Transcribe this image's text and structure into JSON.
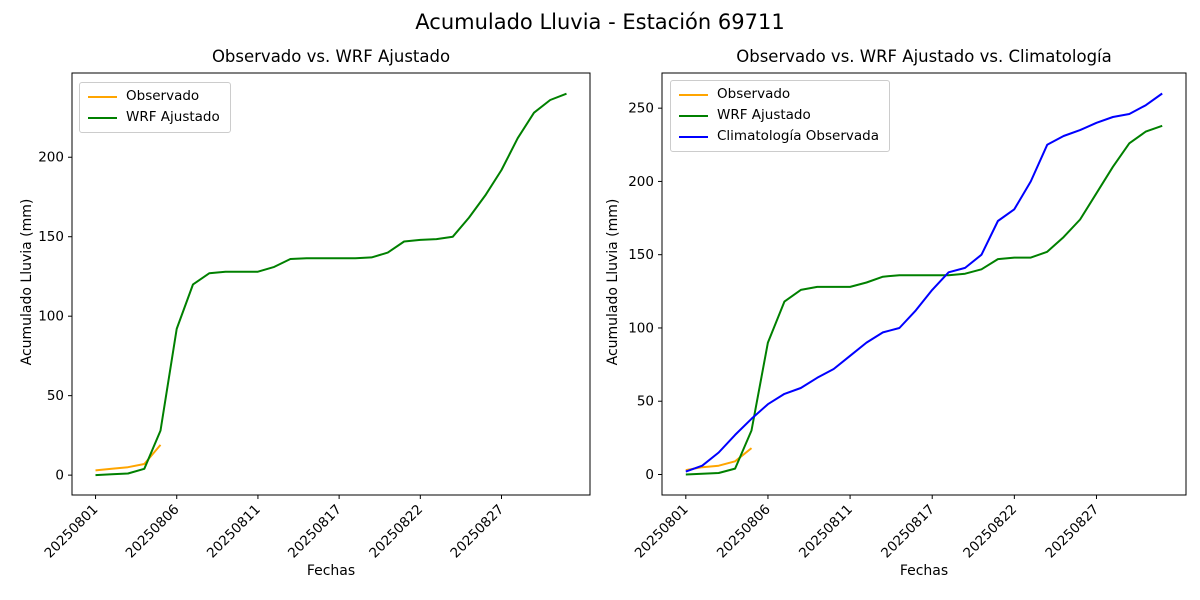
{
  "figure": {
    "suptitle": "Acumulado Lluvia - Estación 69711"
  },
  "chart_data": [
    {
      "type": "line",
      "title": "Observado vs. WRF Ajustado",
      "xlabel": "Fechas",
      "ylabel": "Acumulado Lluvia (mm)",
      "grid": false,
      "legend_position": "upper left",
      "xlim": [
        -1.45,
        30.45
      ],
      "ylim": [
        -12.5,
        253
      ],
      "x_ticks": {
        "positions": [
          0,
          5,
          10,
          15,
          20,
          25
        ],
        "labels": [
          "20250801",
          "20250806",
          "20250811",
          "20250817",
          "20250822",
          "20250827"
        ]
      },
      "y_ticks": [
        0,
        50,
        100,
        150,
        200
      ],
      "series": [
        {
          "name": "Observado",
          "color": "#FFA500",
          "x": [
            0,
            1,
            2,
            3,
            4
          ],
          "values": [
            3,
            4,
            5,
            7,
            19
          ]
        },
        {
          "name": "WRF Ajustado",
          "color": "#008000",
          "x": [
            0,
            1,
            2,
            3,
            4,
            5,
            6,
            7,
            8,
            9,
            10,
            11,
            12,
            13,
            14,
            15,
            16,
            17,
            18,
            19,
            20,
            21,
            22,
            23,
            24,
            25,
            26,
            27,
            28,
            29
          ],
          "values": [
            0,
            0.5,
            1,
            4,
            28,
            92,
            120,
            127,
            128,
            128,
            128,
            131,
            136,
            136.5,
            136.5,
            136.5,
            136.5,
            137,
            140,
            147,
            148,
            148.5,
            150,
            162,
            176,
            192,
            212,
            228,
            236,
            240
          ]
        }
      ]
    },
    {
      "type": "line",
      "title": "Observado vs. WRF Ajustado vs. Climatología",
      "xlabel": "Fechas",
      "ylabel": "Acumulado Lluvia (mm)",
      "grid": false,
      "legend_position": "upper left",
      "xlim": [
        -1.45,
        30.45
      ],
      "ylim": [
        -14,
        274
      ],
      "x_ticks": {
        "positions": [
          0,
          5,
          10,
          15,
          20,
          25
        ],
        "labels": [
          "20250801",
          "20250806",
          "20250811",
          "20250817",
          "20250822",
          "20250827"
        ]
      },
      "y_ticks": [
        0,
        50,
        100,
        150,
        200,
        250
      ],
      "series": [
        {
          "name": "Observado",
          "color": "#FFA500",
          "x": [
            0,
            1,
            2,
            3,
            4
          ],
          "values": [
            3,
            5,
            6,
            9,
            18
          ]
        },
        {
          "name": "WRF Ajustado",
          "color": "#008000",
          "x": [
            0,
            1,
            2,
            3,
            4,
            5,
            6,
            7,
            8,
            9,
            10,
            11,
            12,
            13,
            14,
            15,
            16,
            17,
            18,
            19,
            20,
            21,
            22,
            23,
            24,
            25,
            26,
            27,
            28,
            29
          ],
          "values": [
            0,
            0.5,
            1,
            4,
            30,
            90,
            118,
            126,
            128,
            128,
            128,
            131,
            135,
            136,
            136,
            136,
            136,
            137,
            140,
            147,
            148,
            148,
            152,
            162,
            174,
            192,
            210,
            226,
            234,
            238
          ]
        },
        {
          "name": "Climatología Observada",
          "color": "#0000FF",
          "x": [
            0,
            1,
            2,
            3,
            4,
            5,
            6,
            7,
            8,
            9,
            10,
            11,
            12,
            13,
            14,
            15,
            16,
            17,
            18,
            19,
            20,
            21,
            22,
            23,
            24,
            25,
            26,
            27,
            28,
            29
          ],
          "values": [
            2,
            6,
            15,
            27,
            38,
            48,
            55,
            59,
            66,
            72,
            81,
            90,
            97,
            100,
            112,
            126,
            138,
            141,
            150,
            173,
            181,
            200,
            225,
            231,
            235,
            240,
            244,
            246,
            252,
            260
          ]
        }
      ]
    }
  ]
}
